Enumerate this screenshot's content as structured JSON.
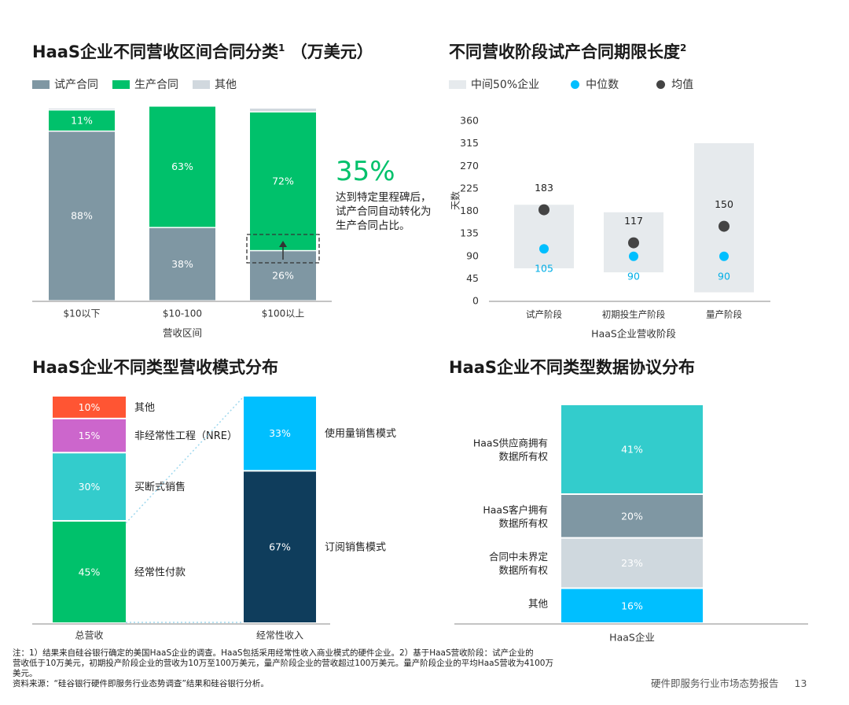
{
  "chart_data": [
    {
      "type": "bar",
      "stacked": true,
      "title": "HaaS企业不同营收区间合同分类",
      "title_sup": "1",
      "title_unit": "（万美元）",
      "xlabel": "营收区间",
      "categories": [
        "$10以下",
        "$10-100",
        "$100以上"
      ],
      "series": [
        {
          "name": "试产合同",
          "color": "#7f97a3",
          "values": [
            88,
            38,
            26
          ],
          "labels": [
            "88%",
            "38%",
            "26%"
          ]
        },
        {
          "name": "生产合同",
          "color": "#00c16b",
          "values": [
            11,
            63,
            72
          ],
          "labels": [
            "11%",
            "63%",
            "72%"
          ]
        },
        {
          "name": "其他",
          "color": "#d1d8de",
          "values": [
            1,
            0,
            2
          ],
          "labels": [
            "",
            "",
            ""
          ]
        }
      ],
      "callout": {
        "value": "35%",
        "text_lines": [
          "达到特定里程碑后，",
          "试产合同自动转化为",
          "生产合同占比。"
        ]
      }
    },
    {
      "type": "scatter",
      "title": "不同营收阶段试产合同期限长度",
      "title_sup": "2",
      "xlabel": "HaaS企业营收阶段",
      "ylabel": "天数",
      "ylim": [
        0,
        360
      ],
      "yticks": [
        0,
        45,
        90,
        135,
        180,
        225,
        270,
        315,
        360
      ],
      "categories": [
        "试产阶段",
        "初期投生产阶段",
        "量产阶段"
      ],
      "legend": [
        "中间50%企业",
        "中位数",
        "均值"
      ],
      "range_low": [
        66,
        58,
        18
      ],
      "range_high": [
        193,
        178,
        316
      ],
      "median": [
        105,
        90,
        90
      ],
      "median_labels": [
        "105",
        "90",
        "90"
      ],
      "mean": [
        183,
        117,
        150
      ],
      "mean_labels": [
        "183",
        "117",
        "150"
      ],
      "colors": {
        "range": "#e6eaed",
        "median": "#00bfff",
        "mean": "#444444"
      }
    },
    {
      "type": "bar",
      "stacked": true,
      "title": "HaaS企业不同类型营收模式分布",
      "categories": [
        "总营收",
        "经常性收入"
      ],
      "total": [
        {
          "name": "经常性付款",
          "value": 45,
          "label": "45%",
          "color": "#00c16b"
        },
        {
          "name": "买断式销售",
          "value": 30,
          "label": "30%",
          "color": "#33cccc"
        },
        {
          "name": "非经常性工程（NRE）",
          "value": 15,
          "label": "15%",
          "color": "#cc66cc"
        },
        {
          "name": "其他",
          "value": 10,
          "label": "10%",
          "color": "#ff5533"
        }
      ],
      "recurring": [
        {
          "name": "订阅销售模式",
          "value": 67,
          "label": "67%",
          "color": "#0f3d5c"
        },
        {
          "name": "使用量销售模式",
          "value": 33,
          "label": "33%",
          "color": "#00bfff"
        }
      ]
    },
    {
      "type": "bar",
      "stacked": true,
      "title": "HaaS企业不同类型数据协议分布",
      "categories": [
        "HaaS企业"
      ],
      "segments": [
        {
          "name": "其他",
          "value": 16,
          "label": "16%",
          "color": "#00bfff"
        },
        {
          "name": "合同中未界定数据所有权",
          "lines": [
            "合同中未界定",
            "数据所有权"
          ],
          "value": 23,
          "label": "23%",
          "color": "#cfd8de"
        },
        {
          "name": "HaaS客户拥有数据所有权",
          "lines": [
            "HaaS客户拥有",
            "数据所有权"
          ],
          "value": 20,
          "label": "20%",
          "color": "#7f97a3"
        },
        {
          "name": "HaaS供应商拥有数据所有权",
          "lines": [
            "HaaS供应商拥有",
            "数据所有权"
          ],
          "value": 41,
          "label": "41%",
          "color": "#33cccc"
        }
      ]
    }
  ],
  "footnote": {
    "lines": [
      "注：1）结果来自硅谷银行确定的美国HaaS企业的调查。HaaS包括采用经常性收入商业模式的硬件企业。2）基于HaaS营收阶段：试产企业的",
      "营收低于10万美元，初期投产阶段企业的营收为10万至100万美元，量产阶段企业的营收超过100万美元。量产阶段企业的平均HaaS营收为4100万",
      "美元。",
      "资料来源：“硅谷银行硬件即服务行业态势调查”结果和硅谷银行分析。"
    ]
  },
  "footer": {
    "report": "硬件即服务行业市场态势报告",
    "page": "13"
  }
}
